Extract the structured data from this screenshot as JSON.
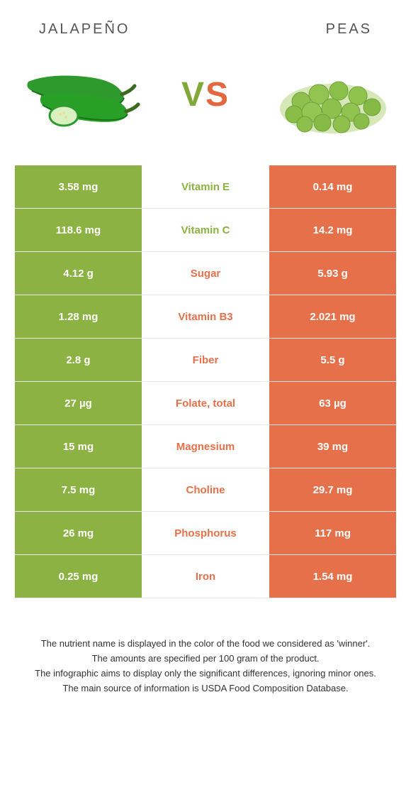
{
  "colors": {
    "green": "#8bb242",
    "orange": "#e6704a",
    "label_green": "#8bb242",
    "label_orange": "#e6704a",
    "text_grey": "#555555"
  },
  "header": {
    "left": "JALAPEÑO",
    "right": "PEAS"
  },
  "vs": {
    "v": "V",
    "s": "S"
  },
  "rows": [
    {
      "label": "Vitamin E",
      "winner": "green",
      "left": "3.58 mg",
      "right": "0.14 mg"
    },
    {
      "label": "Vitamin C",
      "winner": "green",
      "left": "118.6 mg",
      "right": "14.2 mg"
    },
    {
      "label": "Sugar",
      "winner": "orange",
      "left": "4.12 g",
      "right": "5.93 g"
    },
    {
      "label": "Vitamin B3",
      "winner": "orange",
      "left": "1.28 mg",
      "right": "2.021 mg"
    },
    {
      "label": "Fiber",
      "winner": "orange",
      "left": "2.8 g",
      "right": "5.5 g"
    },
    {
      "label": "Folate, total",
      "winner": "orange",
      "left": "27 µg",
      "right": "63 µg"
    },
    {
      "label": "Magnesium",
      "winner": "orange",
      "left": "15 mg",
      "right": "39 mg"
    },
    {
      "label": "Choline",
      "winner": "orange",
      "left": "7.5 mg",
      "right": "29.7 mg"
    },
    {
      "label": "Phosphorus",
      "winner": "orange",
      "left": "26 mg",
      "right": "117 mg"
    },
    {
      "label": "Iron",
      "winner": "orange",
      "left": "0.25 mg",
      "right": "1.54 mg"
    }
  ],
  "footnotes": [
    "The nutrient name is displayed in the color of the food we considered as 'winner'.",
    "The amounts are specified per 100 gram of the product.",
    "The infographic aims to display only the significant differences, ignoring minor ones.",
    "The main source of information is USDA Food Composition Database."
  ]
}
